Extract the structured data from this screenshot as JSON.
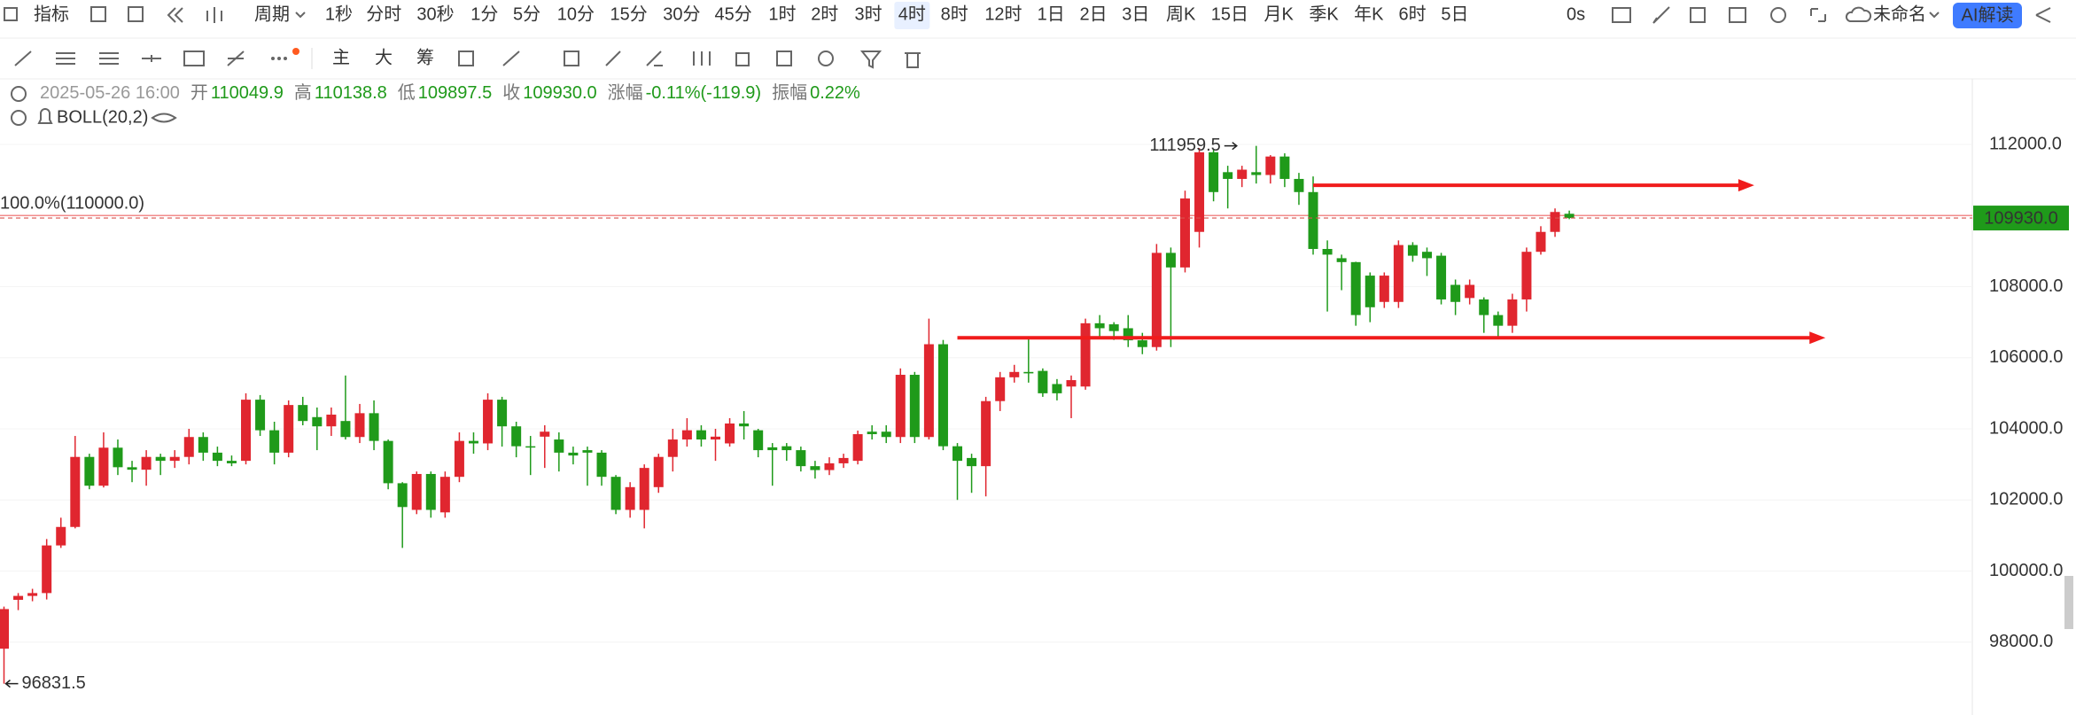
{
  "toolbar": {
    "indicator": "指标",
    "period": "周期",
    "intervals": [
      "1秒",
      "分时",
      "30秒",
      "1分",
      "5分",
      "10分",
      "15分",
      "30分",
      "45分",
      "1时",
      "2时",
      "3时",
      "4时",
      "8时",
      "12时",
      "1日",
      "2日",
      "3日",
      "周K",
      "15日",
      "月K",
      "季K",
      "年K",
      "6时",
      "5日"
    ],
    "active_interval": 12,
    "timer": "0s",
    "layout_name": "未命名",
    "ai_button": "AI解读"
  },
  "drawing_toolbar": {
    "main": "主",
    "big": "大",
    "chips": "筹"
  },
  "legend": {
    "datetime": "2025-05-26 16:00",
    "open_label": "开",
    "open": "110049.9",
    "high_label": "高",
    "high": "110138.8",
    "low_label": "低",
    "low": "109897.5",
    "close_label": "收",
    "close": "109930.0",
    "change_label": "涨幅",
    "change": "-0.11%(-119.9)",
    "amplitude_label": "振幅",
    "amplitude": "0.22%",
    "indicator": "BOLL(20,2)"
  },
  "chart_data": {
    "type": "candlestick",
    "up_color": "#e0262f",
    "down_color": "#1f9a1a",
    "open": [
      97815,
      99190,
      99300,
      99380,
      100720,
      101240,
      103210,
      102400,
      103470,
      102920,
      102850,
      103210,
      103100,
      103210,
      103770,
      103330,
      103100,
      103100,
      104820,
      103960,
      103330,
      104670,
      104330,
      104070,
      104220,
      103770,
      104440,
      103660,
      102470,
      101720,
      102730,
      101650,
      102650,
      103660,
      103590,
      104820,
      104070,
      103510,
      103780,
      103700,
      103330,
      103400,
      103330,
      102650,
      101720,
      101720,
      102360,
      103210,
      103700,
      103960,
      103700,
      103590,
      104150,
      103960,
      103480,
      103510,
      103400,
      102950,
      102840,
      103030,
      103100,
      103920,
      103920,
      103770,
      105520,
      103770,
      106380,
      103510,
      103180,
      102950,
      104780,
      105450,
      105600,
      105630,
      105260,
      105190,
      105190,
      106970,
      106940,
      106830,
      106490,
      106300,
      108950,
      108540,
      109540,
      111780,
      111220,
      111030,
      111220,
      111140,
      111660,
      111030,
      110660,
      109060,
      108800,
      108690,
      108310,
      107570,
      107570,
      109170,
      108980,
      108870,
      108050,
      107680,
      107640,
      107200,
      106900,
      107640,
      108980,
      109540,
      110049.9
    ],
    "high": [
      99000,
      99380,
      99500,
      100900,
      101500,
      103800,
      103300,
      103900,
      103700,
      103100,
      103400,
      103300,
      103400,
      104000,
      103900,
      103500,
      103250,
      105000,
      104950,
      104200,
      104800,
      104900,
      104600,
      104600,
      105500,
      104700,
      104800,
      103700,
      102500,
      102800,
      102800,
      102800,
      103900,
      103900,
      105000,
      104900,
      104200,
      103800,
      104100,
      103900,
      103500,
      103500,
      103400,
      102700,
      102500,
      103000,
      103300,
      104000,
      104300,
      104100,
      104000,
      104300,
      104500,
      104000,
      103600,
      103600,
      103500,
      103100,
      103200,
      103300,
      103950,
      104100,
      104100,
      105700,
      105600,
      107100,
      106500,
      103600,
      103300,
      104900,
      105600,
      105800,
      106600,
      105700,
      105400,
      105500,
      107100,
      107200,
      107000,
      107200,
      106700,
      109200,
      109100,
      110700,
      111900,
      111850,
      111400,
      111400,
      111959.5,
      111700,
      111750,
      111200,
      111100,
      109300,
      108900,
      108700,
      108400,
      108400,
      109300,
      109250,
      109100,
      108950,
      108200,
      108200,
      107700,
      107300,
      107800,
      109100,
      109700,
      110200,
      110138.8
    ],
    "low": [
      96831.5,
      98900,
      99150,
      99200,
      100650,
      101200,
      102300,
      102350,
      102700,
      102500,
      102400,
      102700,
      102900,
      103000,
      103100,
      102950,
      102950,
      103000,
      103800,
      103000,
      103200,
      104100,
      103400,
      103800,
      103700,
      103600,
      103400,
      102300,
      100650,
      101600,
      101500,
      101500,
      102500,
      103300,
      103400,
      103500,
      103200,
      102700,
      102900,
      102800,
      103000,
      102400,
      102400,
      101600,
      101500,
      101200,
      102200,
      102800,
      103500,
      103500,
      103100,
      103500,
      103700,
      103200,
      102400,
      103100,
      102800,
      102600,
      102700,
      102900,
      103000,
      103700,
      103600,
      103600,
      103600,
      103700,
      103400,
      102000,
      102200,
      102100,
      104500,
      105300,
      105300,
      104900,
      104800,
      104300,
      105100,
      106600,
      106500,
      106300,
      106100,
      106200,
      106300,
      108400,
      109100,
      110400,
      110200,
      110800,
      110900,
      110900,
      110800,
      110300,
      108900,
      107300,
      107900,
      106900,
      107000,
      107400,
      107400,
      108700,
      108300,
      107500,
      107200,
      107500,
      106700,
      106550,
      106700,
      107300,
      108900,
      109400,
      109897.5
    ],
    "close": [
      98930,
      99300,
      99380,
      100720,
      101240,
      103210,
      102400,
      103470,
      102920,
      102850,
      103210,
      103100,
      103210,
      103770,
      103330,
      103100,
      103030,
      104820,
      103960,
      103330,
      104670,
      104220,
      104070,
      104400,
      103770,
      104440,
      103660,
      102470,
      101800,
      102730,
      101720,
      102650,
      103660,
      103590,
      104820,
      104070,
      103510,
      103500,
      103920,
      103330,
      103250,
      103330,
      102650,
      101720,
      102360,
      102900,
      103210,
      103700,
      103960,
      103700,
      103780,
      104150,
      104070,
      103400,
      103400,
      103400,
      102950,
      102840,
      103030,
      103180,
      103850,
      103850,
      103770,
      105520,
      103770,
      106380,
      103510,
      103100,
      102950,
      104780,
      105450,
      105600,
      105560,
      105000,
      105000,
      105370,
      106970,
      106830,
      106750,
      106490,
      106300,
      108950,
      108540,
      110480,
      111780,
      110660,
      111030,
      111290,
      111140,
      111660,
      111030,
      110660,
      109060,
      108900,
      108690,
      107200,
      107420,
      108310,
      109170,
      108870,
      108800,
      107640,
      107570,
      108050,
      107200,
      106900,
      107640,
      108980,
      109540,
      110100,
      109930
    ],
    "ylim": [
      95950,
      113820
    ],
    "yticks": [
      {
        "value": 98000,
        "label": "98000.0"
      },
      {
        "value": 100000,
        "label": "100000.0"
      },
      {
        "value": 102000,
        "label": "102000.0"
      },
      {
        "value": 104000,
        "label": "104000.0"
      },
      {
        "value": 106000,
        "label": "106000.0"
      },
      {
        "value": 108000,
        "label": "108000.0"
      },
      {
        "value": 110000,
        "label": "110000.0"
      },
      {
        "value": 112000,
        "label": "112000.0"
      }
    ],
    "last_price_label": "109930.0",
    "fib": {
      "value": 110000,
      "label": "100.0%(110000.0)"
    },
    "arrows": [
      {
        "y": 110850,
        "x": [
          92,
          123
        ]
      },
      {
        "y": 106560,
        "x": [
          67,
          128
        ]
      }
    ],
    "arrow_color": "#f01c1c"
  }
}
